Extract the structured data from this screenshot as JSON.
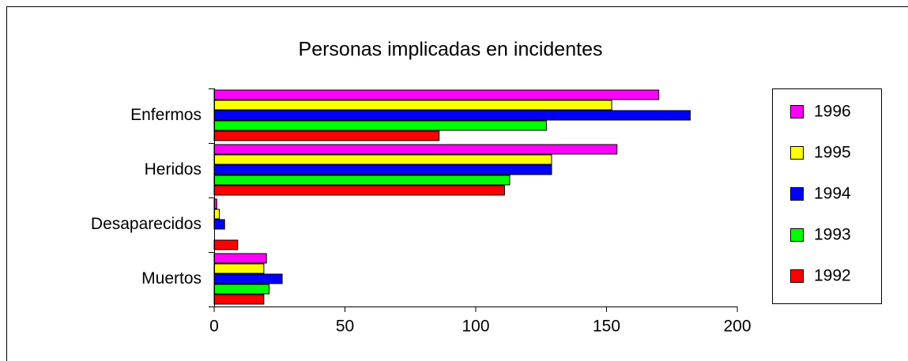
{
  "chart_data": {
    "type": "hbar",
    "title": "Personas implicadas en incidentes",
    "categories": [
      "Enfermos",
      "Heridos",
      "Desaparecidos",
      "Muertos"
    ],
    "series": [
      {
        "name": "1996",
        "color": "#ff00ff",
        "values": [
          170,
          154,
          1,
          20
        ]
      },
      {
        "name": "1995",
        "color": "#ffff00",
        "values": [
          152,
          129,
          2,
          19
        ]
      },
      {
        "name": "1994",
        "color": "#0000ff",
        "values": [
          182,
          129,
          4,
          26
        ]
      },
      {
        "name": "1993",
        "color": "#00ff00",
        "values": [
          127,
          113,
          0,
          21
        ]
      },
      {
        "name": "1992",
        "color": "#ff0000",
        "values": [
          86,
          111,
          9,
          19
        ]
      }
    ],
    "xlim": [
      0,
      200
    ],
    "xticks": [
      0,
      50,
      100,
      150,
      200
    ],
    "legend": "right"
  }
}
